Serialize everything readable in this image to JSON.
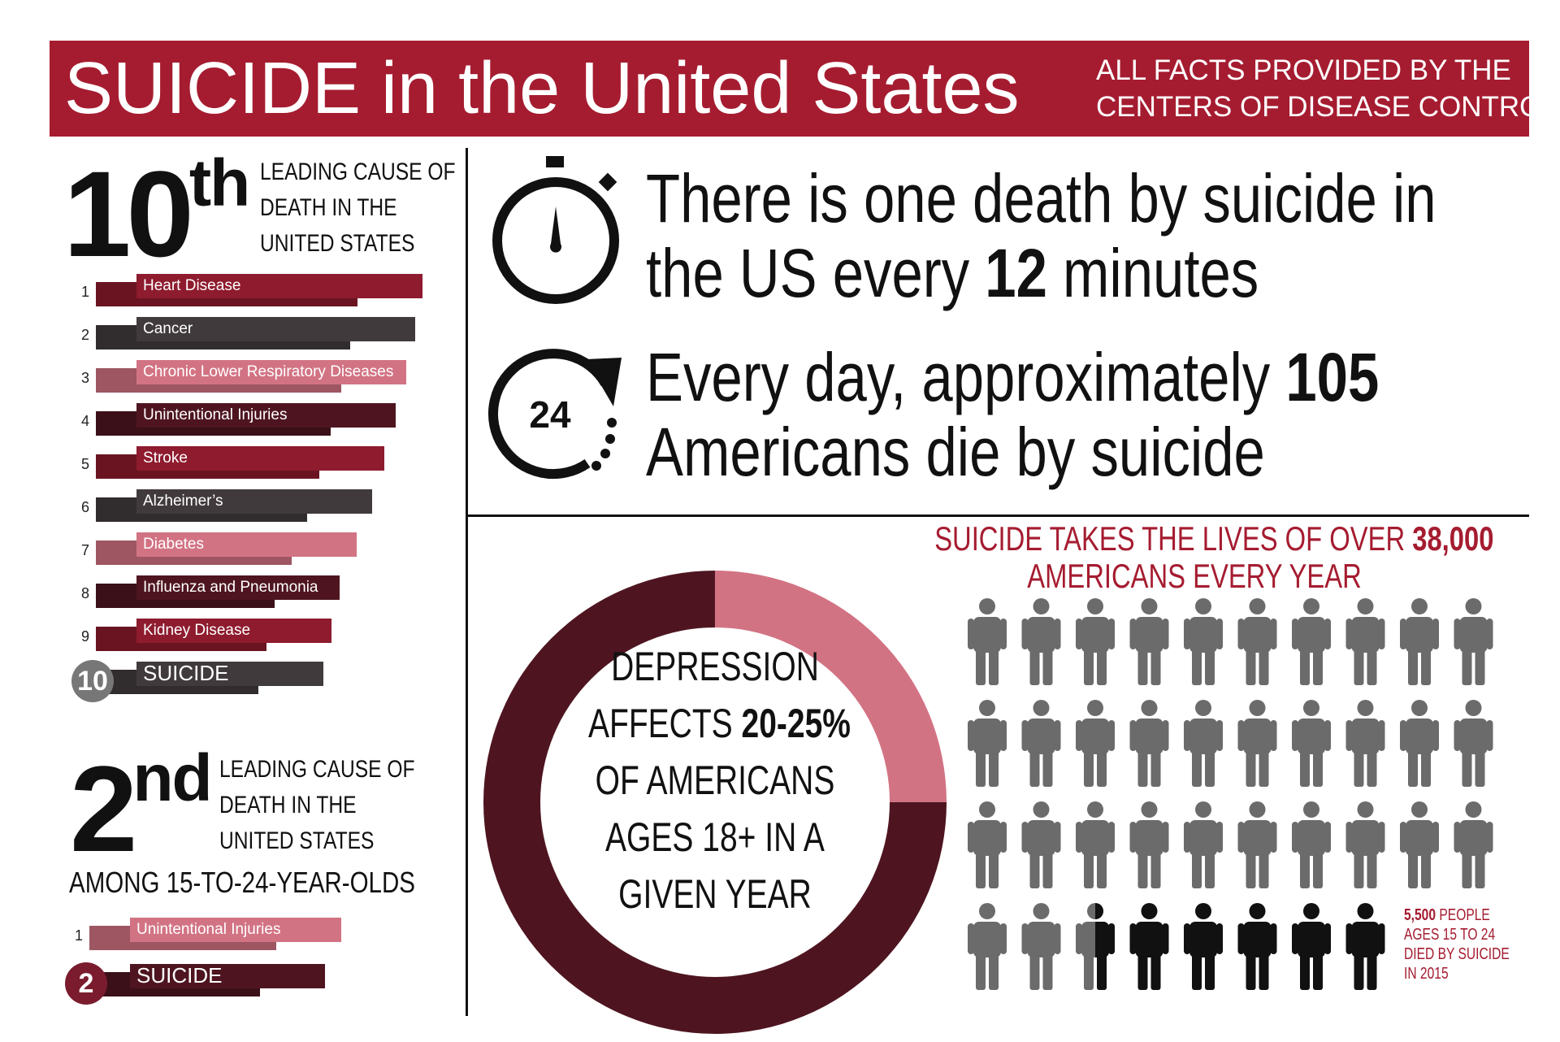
{
  "header": {
    "title": "SUICIDE in the United States",
    "source_line1": "ALL FACTS PROVIDED BY THE",
    "source_line2": "CENTERS OF DISEASE CONTROL"
  },
  "colors": {
    "brand_red": "#a51c30",
    "crimson": "#8e1b2e",
    "dark_gray": "#413a3c",
    "pink": "#d27384",
    "maroon": "#4e1520",
    "person_gray": "#6b6b6b",
    "person_black": "#111111"
  },
  "overall": {
    "rank": "10",
    "rank_suffix": "th",
    "caption_lines": [
      "LEADING CAUSE OF",
      "DEATH IN THE",
      "UNITED STATES"
    ],
    "causes": [
      {
        "rank": "1",
        "label": "Heart Disease",
        "color": "#8e1b2e"
      },
      {
        "rank": "2",
        "label": "Cancer",
        "color": "#413a3c"
      },
      {
        "rank": "3",
        "label": "Chronic Lower Respiratory Diseases",
        "color": "#d27384"
      },
      {
        "rank": "4",
        "label": "Unintentional Injuries",
        "color": "#4e1520"
      },
      {
        "rank": "5",
        "label": "Stroke",
        "color": "#8e1b2e"
      },
      {
        "rank": "6",
        "label": "Alzheimer’s",
        "color": "#413a3c"
      },
      {
        "rank": "7",
        "label": "Diabetes",
        "color": "#d27384"
      },
      {
        "rank": "8",
        "label": "Influenza and Pneumonia",
        "color": "#4e1520"
      },
      {
        "rank": "9",
        "label": "Kidney Disease",
        "color": "#8e1b2e"
      },
      {
        "rank": "10",
        "label": "SUICIDE",
        "color": "#413a3c"
      }
    ]
  },
  "youth": {
    "rank": "2",
    "rank_suffix": "nd",
    "caption_lines": [
      "LEADING CAUSE OF",
      "DEATH IN THE",
      "UNITED STATES"
    ],
    "subcaption": "AMONG 15-TO-24-YEAR-OLDS",
    "causes": [
      {
        "rank": "1",
        "label": "Unintentional Injuries",
        "color": "#d27384"
      },
      {
        "rank": "2",
        "label": "SUICIDE",
        "color": "#4e1520"
      }
    ]
  },
  "stats": {
    "minutes_pre": "There is one death by suicide in",
    "minutes_line2_pre": "the US every ",
    "minutes_bold": "12",
    "minutes_post": " minutes",
    "daily_pre": "Every day, approximately ",
    "daily_bold": "105",
    "daily_line2": "Americans die by suicide",
    "clock_label": "24"
  },
  "depression": {
    "line1": "DEPRESSION",
    "line2_pre": "AFFECTS ",
    "line2_bold": "20-25%",
    "line3": "OF AMERICANS",
    "line4": "AGES 18+ IN A",
    "line5": "GIVEN YEAR",
    "share": 0.25
  },
  "pictogram": {
    "headline_pre": "SUICIDE TAKES THE LIVES OF OVER ",
    "headline_bold": "38,000",
    "headline_line2": "AMERICANS EVERY YEAR",
    "total_icons": 38,
    "highlight_icons": 5.5,
    "note_bold": "5,500",
    "note_lines": [
      "PEOPLE",
      "AGES 15 TO 24",
      "DIED BY SUICIDE",
      "IN 2015"
    ]
  }
}
